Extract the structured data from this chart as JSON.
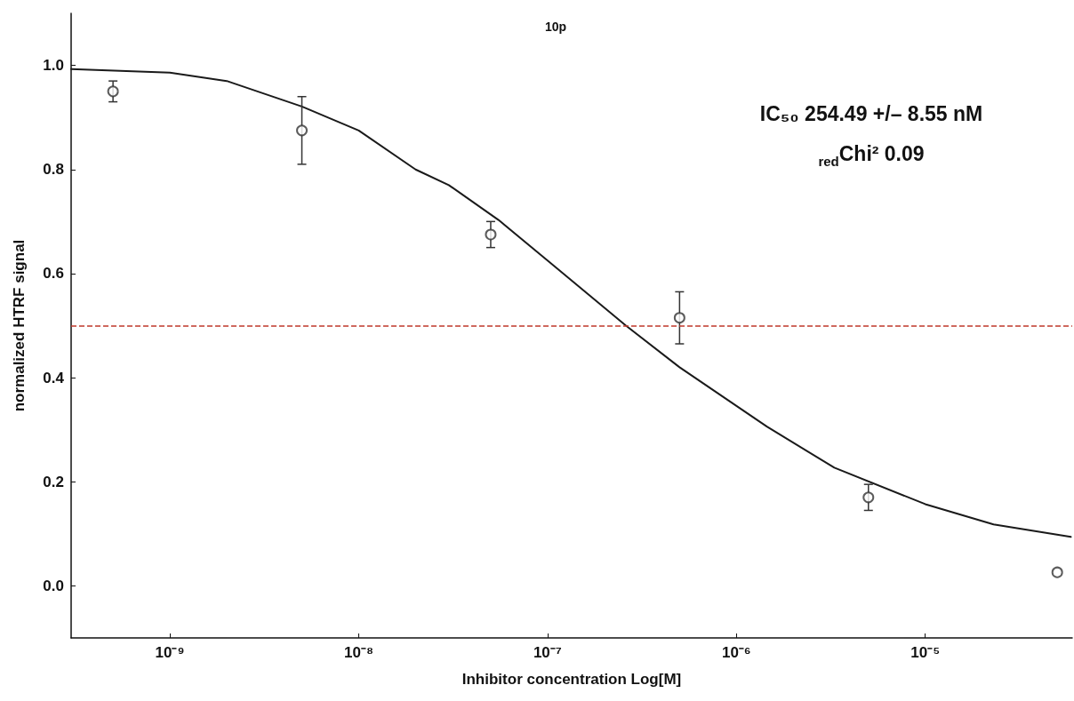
{
  "chart_data": {
    "type": "scatter",
    "title": "10p",
    "xlabel": "Inhibitor concentration Log[M]",
    "ylabel": "normalized HTRF signal",
    "annotations": [
      "IC₅₀ 254.49 +/– 8.55 nM",
      "$_{red}$Chi² 0.09"
    ],
    "log": "x",
    "grid": false,
    "xlim": [
      3e-10,
      6e-05
    ],
    "xticks": [
      {
        "value": 1e-09,
        "label": "10⁻⁹"
      },
      {
        "value": 1e-08,
        "label": "10⁻⁸"
      },
      {
        "value": 1e-07,
        "label": "10⁻⁷"
      },
      {
        "value": 1e-06,
        "label": "10⁻⁶"
      },
      {
        "value": 1e-05,
        "label": "10⁻⁵"
      }
    ],
    "ylim": [
      -0.1,
      1.1
    ],
    "yticks": [
      {
        "value": 0,
        "label": "0.0"
      },
      {
        "value": 0.2,
        "label": "0.2"
      },
      {
        "value": 0.4,
        "label": "0.4"
      },
      {
        "value": 0.6,
        "label": "0.6"
      },
      {
        "value": 0.8,
        "label": "0.8"
      },
      {
        "value": 1,
        "label": "1.0"
      }
    ],
    "ref_lines": [
      {
        "axis": "y",
        "value": 0.5,
        "color": "#c0392b",
        "line_style": "dashed"
      }
    ],
    "series": [
      {
        "marker": "circle",
        "color": "#333333",
        "x": [
          5e-10,
          5e-09,
          5e-08,
          5e-07,
          5e-06,
          5e-05
        ],
        "values": [
          0.95,
          0.875,
          0.675,
          0.515,
          0.17,
          0.026
        ],
        "errors": [
          0.02,
          0.065,
          0.025,
          0.05,
          0.025,
          null
        ]
      },
      {
        "type": "line",
        "marker": "none",
        "line_style": "solid",
        "color": "#1a1a1a",
        "x": [
          3e-10,
          1e-09,
          2e-09,
          5e-09,
          1e-08,
          2e-08,
          3e-08,
          5.5e-08,
          1e-07,
          2.6e-07,
          5e-07,
          1.45e-06,
          3.3e-06,
          1e-05,
          2.3e-05,
          5.9e-05
        ],
        "values": [
          0.993,
          0.986,
          0.97,
          0.921,
          0.875,
          0.8,
          0.77,
          0.703,
          0.625,
          0.5,
          0.42,
          0.306,
          0.227,
          0.157,
          0.118,
          0.094
        ]
      }
    ]
  }
}
